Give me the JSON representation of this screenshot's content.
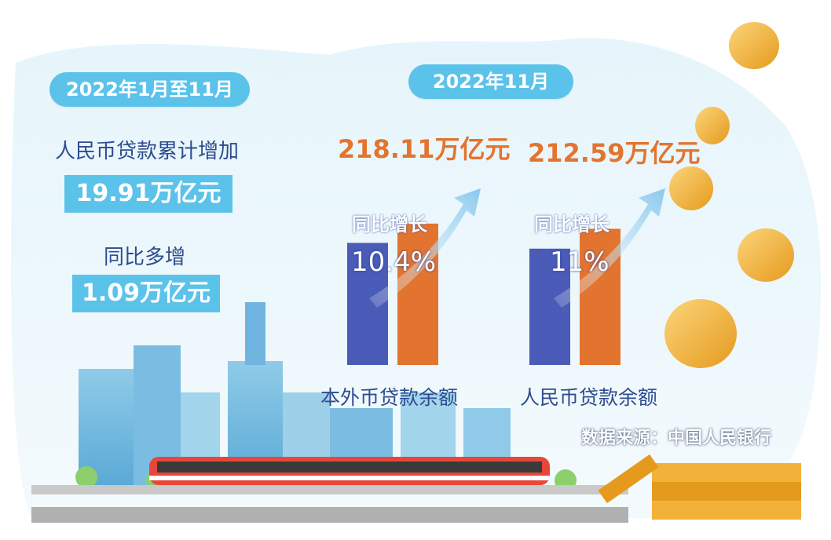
{
  "left_panel": {
    "period": "2022年1月至11月",
    "cumulative_label": "人民币贷款累计增加",
    "cumulative_value": "19.91万亿元",
    "yoy_more_label": "同比多增",
    "yoy_more_value": "1.09万亿元"
  },
  "right_panel": {
    "period": "2022年11月"
  },
  "source": "数据来源：中国人民银行",
  "colors": {
    "pill_blue": "#5bc2ea",
    "bar_prev": "#4a5bb8",
    "bar_curr": "#e3742f",
    "text_dark": "#2e4c8f",
    "amount_orange": "#e3742f",
    "coin_gold": "#f2b23a"
  },
  "chart_data": {
    "type": "bar",
    "categories": [
      "本外币贷款余额",
      "人民币贷款余额"
    ],
    "series": [
      {
        "values": [
          197.6,
          191.5
        ]
      },
      {
        "values": [
          218.11,
          212.59
        ]
      }
    ],
    "value_labels": [
      "218.11万亿元",
      "212.59万亿元"
    ],
    "growth_label": "同比增长",
    "growth_rates": [
      "10.4%",
      "11%"
    ]
  }
}
